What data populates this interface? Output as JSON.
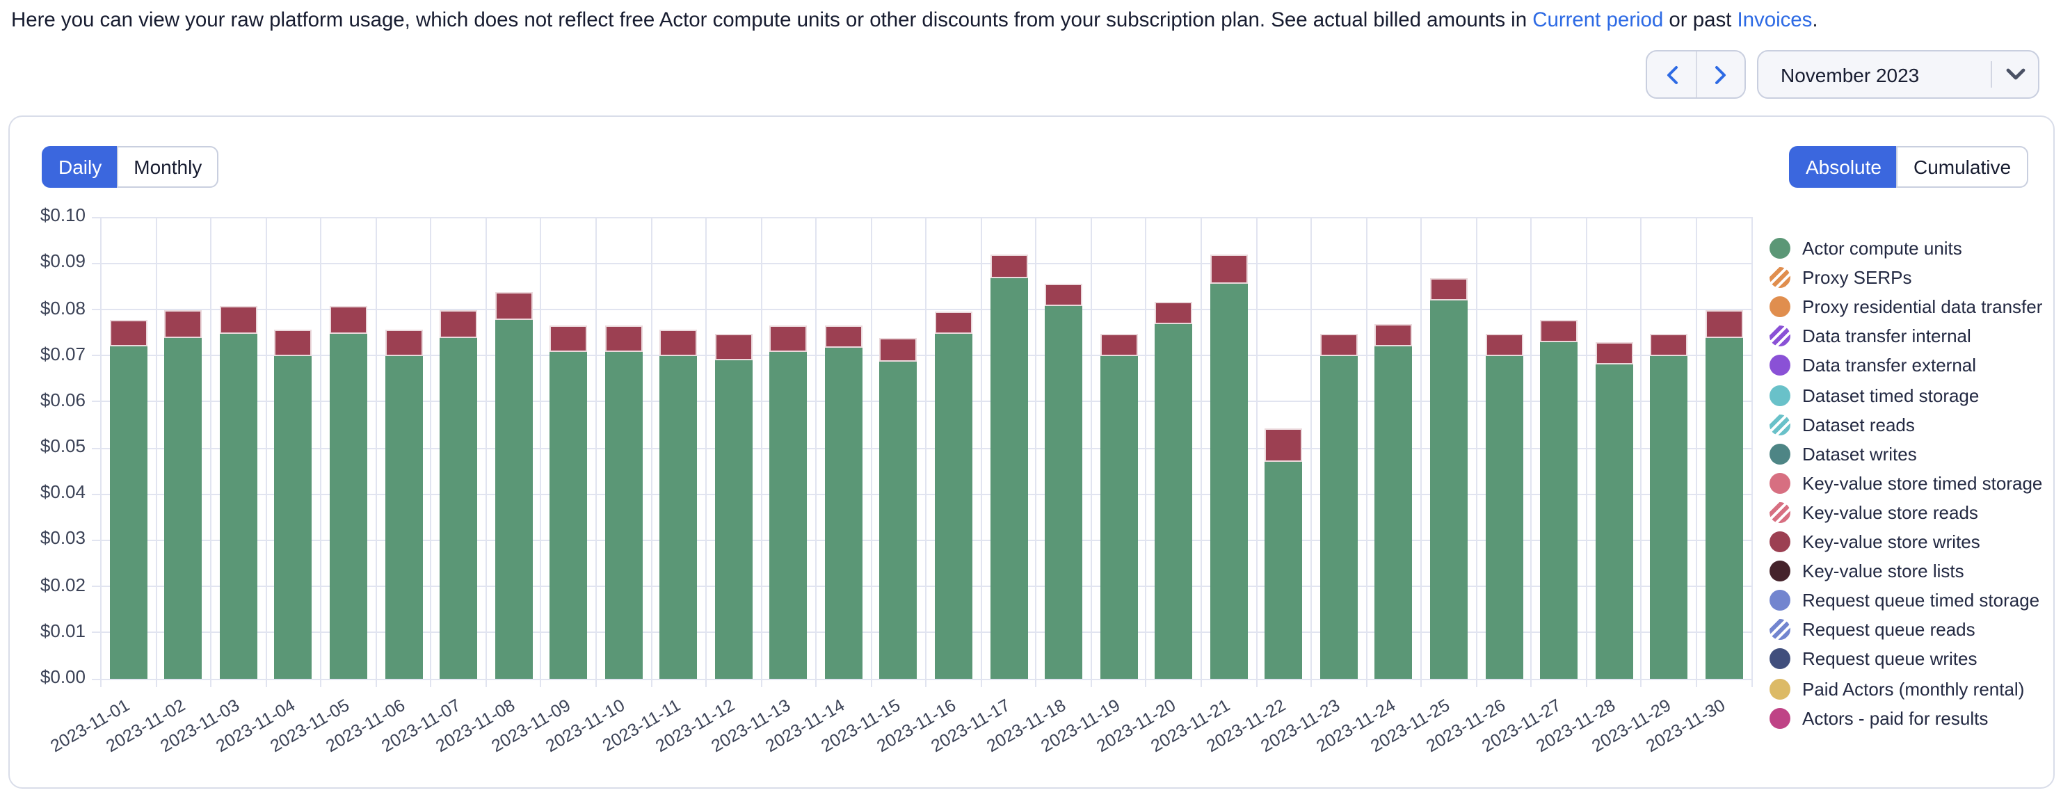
{
  "header": {
    "intro_text": "Here you can view your raw platform usage, which does not reflect free Actor compute units or other discounts from your subscription plan. See actual billed amounts in ",
    "link_current_period": "Current period",
    "middle_text": " or past ",
    "link_invoices": "Invoices",
    "end_text": "."
  },
  "period_nav": {
    "selected_period": "November 2023"
  },
  "controls": {
    "granularity": {
      "options": [
        "Daily",
        "Monthly"
      ],
      "selected": "Daily"
    },
    "mode": {
      "options": [
        "Absolute",
        "Cumulative"
      ],
      "selected": "Absolute"
    }
  },
  "chart_data": {
    "type": "bar",
    "stacked": true,
    "x": [
      "2023-11-01",
      "2023-11-02",
      "2023-11-03",
      "2023-11-04",
      "2023-11-05",
      "2023-11-06",
      "2023-11-07",
      "2023-11-08",
      "2023-11-09",
      "2023-11-10",
      "2023-11-11",
      "2023-11-12",
      "2023-11-13",
      "2023-11-14",
      "2023-11-15",
      "2023-11-16",
      "2023-11-17",
      "2023-11-18",
      "2023-11-19",
      "2023-11-20",
      "2023-11-21",
      "2023-11-22",
      "2023-11-23",
      "2023-11-24",
      "2023-11-25",
      "2023-11-26",
      "2023-11-27",
      "2023-11-28",
      "2023-11-29",
      "2023-11-30"
    ],
    "series": [
      {
        "name": "Actor compute units",
        "color": "#5b9776",
        "values": [
          0.0719,
          0.0739,
          0.0749,
          0.0699,
          0.0749,
          0.0699,
          0.0739,
          0.0779,
          0.0709,
          0.0709,
          0.0698,
          0.0689,
          0.0709,
          0.0718,
          0.0688,
          0.0749,
          0.0869,
          0.0808,
          0.0699,
          0.0769,
          0.0857,
          0.0471,
          0.07,
          0.0719,
          0.0819,
          0.0699,
          0.0729,
          0.068,
          0.0698,
          0.0739
        ]
      },
      {
        "name": "Key-value store writes",
        "color": "#9c4052",
        "values": [
          0.0059,
          0.0059,
          0.0059,
          0.0059,
          0.0058,
          0.0057,
          0.0059,
          0.0059,
          0.0058,
          0.0058,
          0.006,
          0.0058,
          0.0058,
          0.0049,
          0.005,
          0.0048,
          0.005,
          0.0049,
          0.0049,
          0.0048,
          0.0062,
          0.0071,
          0.0049,
          0.0049,
          0.0049,
          0.0049,
          0.005,
          0.0048,
          0.0051,
          0.006
        ]
      }
    ],
    "ylim": [
      0,
      0.1
    ],
    "ytick_labels": [
      "$0.00",
      "$0.01",
      "$0.02",
      "$0.03",
      "$0.04",
      "$0.05",
      "$0.06",
      "$0.07",
      "$0.08",
      "$0.09",
      "$0.10"
    ],
    "grid": true,
    "legend_position": "right"
  },
  "legend": {
    "items": [
      {
        "label": "Actor compute units",
        "color": "#5b9776",
        "striped": false
      },
      {
        "label": "Proxy SERPs",
        "color": "#e08e4e",
        "striped": true
      },
      {
        "label": "Proxy residential data transfer",
        "color": "#e08e4e",
        "striped": false
      },
      {
        "label": "Data transfer internal",
        "color": "#8a51d6",
        "striped": true
      },
      {
        "label": "Data transfer external",
        "color": "#8a51d6",
        "striped": false
      },
      {
        "label": "Dataset timed storage",
        "color": "#69c1c9",
        "striped": false
      },
      {
        "label": "Dataset reads",
        "color": "#69c1c9",
        "striped": true
      },
      {
        "label": "Dataset writes",
        "color": "#4e8585",
        "striped": false
      },
      {
        "label": "Key-value store timed storage",
        "color": "#d76f81",
        "striped": false
      },
      {
        "label": "Key-value store reads",
        "color": "#d76f81",
        "striped": true
      },
      {
        "label": "Key-value store writes",
        "color": "#9c4052",
        "striped": false
      },
      {
        "label": "Key-value store lists",
        "color": "#45232b",
        "striped": false
      },
      {
        "label": "Request queue timed storage",
        "color": "#7285cf",
        "striped": false
      },
      {
        "label": "Request queue reads",
        "color": "#7285cf",
        "striped": true
      },
      {
        "label": "Request queue writes",
        "color": "#414f7d",
        "striped": false
      },
      {
        "label": "Paid Actors (monthly rental)",
        "color": "#dcba66",
        "striped": false
      },
      {
        "label": "Actors - paid for results",
        "color": "#bf4386",
        "striped": false
      }
    ]
  }
}
